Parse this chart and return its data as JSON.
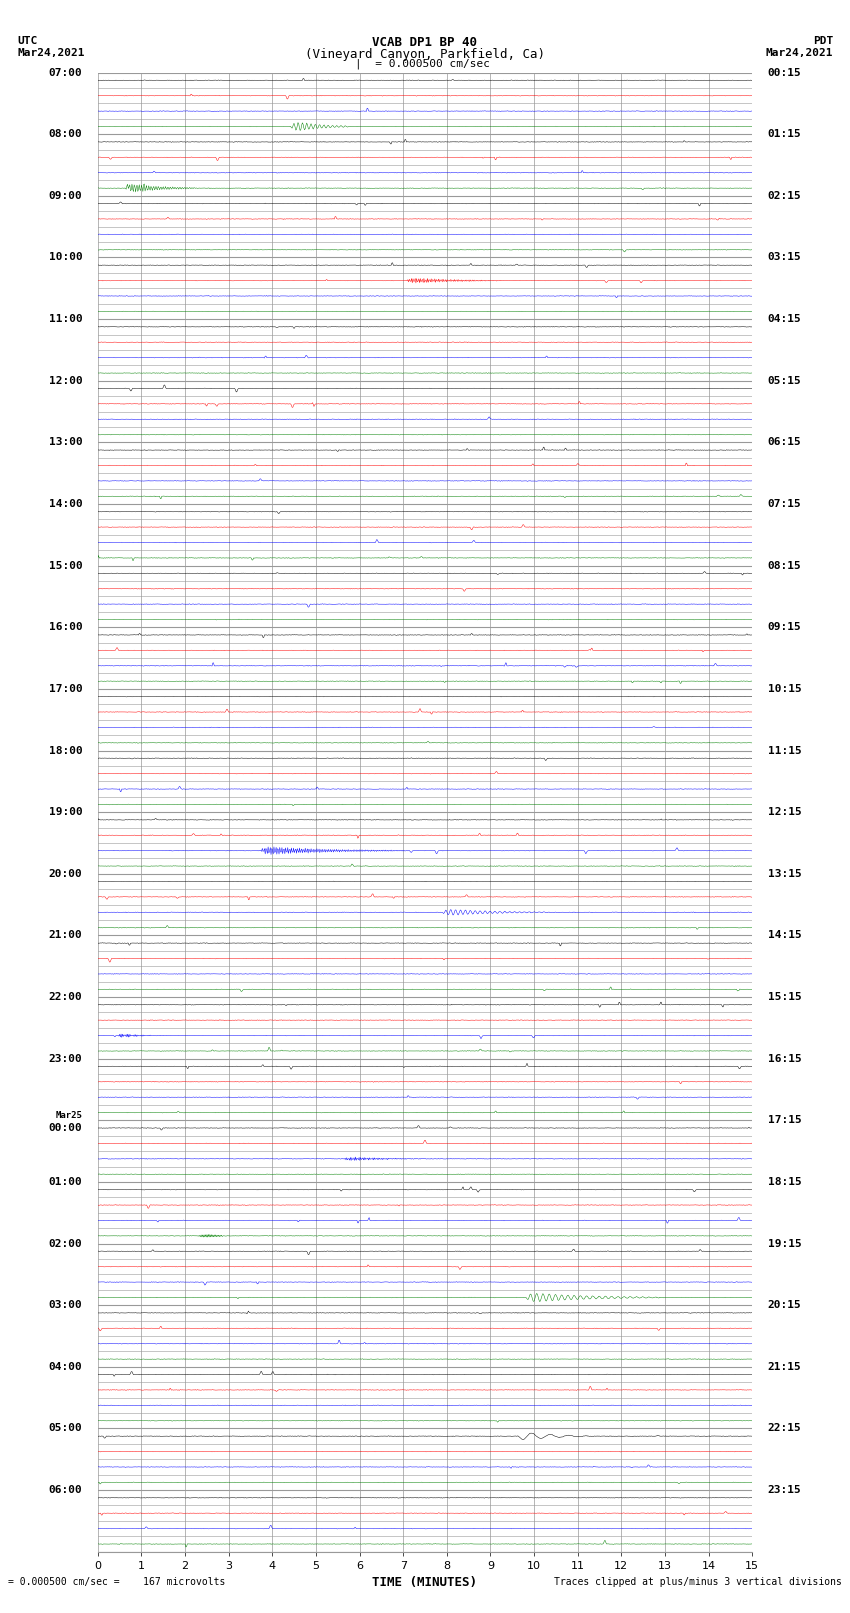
{
  "title_line1": "VCAB DP1 BP 40",
  "title_line2": "(Vineyard Canyon, Parkfield, Ca)",
  "scale_label": "= 0.000500 cm/sec",
  "left_label_top": "UTC",
  "left_label_bottom": "Mar24,2021",
  "right_label_top": "PDT",
  "right_label_bottom": "Mar24,2021",
  "xlabel": "TIME (MINUTES)",
  "bottom_left": "= 0.000500 cm/sec =    167 microvolts",
  "bottom_right": "Traces clipped at plus/minus 3 vertical divisions",
  "num_rows": 96,
  "fig_width": 8.5,
  "fig_height": 16.13,
  "xlim": [
    0,
    15
  ],
  "xticks": [
    0,
    1,
    2,
    3,
    4,
    5,
    6,
    7,
    8,
    9,
    10,
    11,
    12,
    13,
    14,
    15
  ],
  "background_color": "white",
  "grid_color": "#999999",
  "colors": [
    "black",
    "red",
    "blue",
    "green"
  ],
  "utc_labels": [
    "07:00",
    "",
    "",
    "",
    "08:00",
    "",
    "",
    "",
    "09:00",
    "",
    "",
    "",
    "10:00",
    "",
    "",
    "",
    "11:00",
    "",
    "",
    "",
    "12:00",
    "",
    "",
    "",
    "13:00",
    "",
    "",
    "",
    "14:00",
    "",
    "",
    "",
    "15:00",
    "",
    "",
    "",
    "16:00",
    "",
    "",
    "",
    "17:00",
    "",
    "",
    "",
    "18:00",
    "",
    "",
    "",
    "19:00",
    "",
    "",
    "",
    "20:00",
    "",
    "",
    "",
    "21:00",
    "",
    "",
    "",
    "22:00",
    "",
    "",
    "",
    "23:00",
    "",
    "",
    "",
    "Mar25 00:00",
    "",
    "",
    "",
    "01:00",
    "",
    "",
    "",
    "02:00",
    "",
    "",
    "",
    "03:00",
    "",
    "",
    "",
    "04:00",
    "",
    "",
    "",
    "05:00",
    "",
    "",
    "",
    "06:00",
    "",
    "",
    ""
  ],
  "pdt_labels": [
    "00:15",
    "",
    "",
    "",
    "01:15",
    "",
    "",
    "",
    "02:15",
    "",
    "",
    "",
    "03:15",
    "",
    "",
    "",
    "04:15",
    "",
    "",
    "",
    "05:15",
    "",
    "",
    "",
    "06:15",
    "",
    "",
    "",
    "07:15",
    "",
    "",
    "",
    "08:15",
    "",
    "",
    "",
    "09:15",
    "",
    "",
    "",
    "10:15",
    "",
    "",
    "",
    "11:15",
    "",
    "",
    "",
    "12:15",
    "",
    "",
    "",
    "13:15",
    "",
    "",
    "",
    "14:15",
    "",
    "",
    "",
    "15:15",
    "",
    "",
    "",
    "16:15",
    "",
    "",
    "",
    "17:15",
    "",
    "",
    "",
    "18:15",
    "",
    "",
    "",
    "19:15",
    "",
    "",
    "",
    "20:15",
    "",
    "",
    "",
    "21:15",
    "",
    "",
    "",
    "22:15",
    "",
    "",
    "",
    "23:15",
    "",
    "",
    ""
  ]
}
